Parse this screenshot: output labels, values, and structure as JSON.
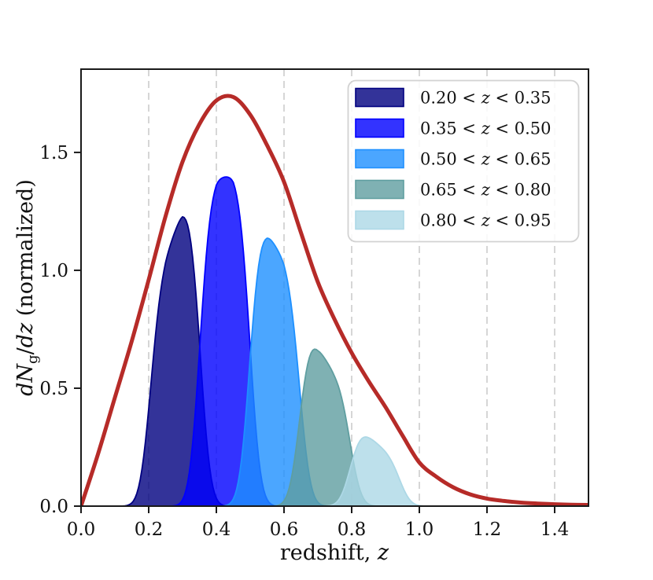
{
  "figure": {
    "background": "#ffffff",
    "frame_color": "#1a1a1a",
    "grid_color": "#c9c9c9",
    "xlabel": "redshift, z",
    "ylabel": "dNg/dz (normalized)",
    "xlabel_segments": [
      {
        "t": "redshift, "
      },
      {
        "t": "z",
        "i": true
      }
    ],
    "ylabel_segments": [
      {
        "t": "dN",
        "i": true
      },
      {
        "t": "g",
        "sub": true
      },
      {
        "t": "/"
      },
      {
        "t": "dz",
        "i": true
      },
      {
        "t": " (normalized)"
      }
    ]
  },
  "chart_data": {
    "type": "line+area",
    "title": "",
    "xlabel": "redshift, z",
    "ylabel": "dN_g/dz (normalized)",
    "xlim": [
      0,
      1.5
    ],
    "ylim": [
      0,
      1.853
    ],
    "x_ticks": {
      "values": [
        0,
        0.2,
        0.4,
        0.6,
        0.8,
        1.0,
        1.2,
        1.4
      ],
      "labels": [
        "0.0",
        "0.2",
        "0.4",
        "0.6",
        "0.8",
        "1.0",
        "1.2",
        "1.4"
      ]
    },
    "y_ticks": {
      "values": [
        0,
        0.5,
        1.0,
        1.5
      ],
      "labels": [
        "0.0",
        "0.5",
        "1.0",
        "1.5"
      ]
    },
    "grid": {
      "axis": "x",
      "style": "dashed",
      "color": "#c9c9c9",
      "positions": [
        0.2,
        0.4,
        0.6,
        0.8,
        1.0,
        1.2,
        1.4
      ]
    },
    "legend": {
      "position": "upper right",
      "entries": [
        "0.20 < z < 0.35",
        "0.35 < z < 0.50",
        "0.50 < z < 0.65",
        "0.65 < z < 0.80",
        "0.80 < z < 0.95"
      ]
    },
    "total_curve": {
      "name": "total dN/dz",
      "color": "#B62B28",
      "linewidth": 5,
      "peak": {
        "z": 0.42,
        "value": 1.75
      },
      "x": [
        0.0,
        0.05,
        0.1,
        0.15,
        0.2,
        0.25,
        0.3,
        0.35,
        0.4,
        0.45,
        0.5,
        0.55,
        0.6,
        0.65,
        0.7,
        0.75,
        0.8,
        0.85,
        0.9,
        0.95,
        1.0,
        1.05,
        1.1,
        1.15,
        1.2,
        1.25,
        1.3,
        1.35,
        1.4,
        1.45,
        1.5
      ],
      "y": [
        0.0,
        0.22,
        0.46,
        0.7,
        0.96,
        1.23,
        1.46,
        1.62,
        1.72,
        1.735,
        1.66,
        1.53,
        1.375,
        1.16,
        0.95,
        0.79,
        0.65,
        0.53,
        0.42,
        0.3,
        0.185,
        0.125,
        0.08,
        0.05,
        0.032,
        0.022,
        0.015,
        0.011,
        0.008,
        0.006,
        0.005
      ]
    },
    "bins": {
      "fill_opacity": 0.8,
      "window_sigma": 0.025,
      "series": [
        {
          "label": "0.20 < z < 0.35",
          "label_segments": [
            {
              "t": "0.20 < "
            },
            {
              "t": "z",
              "i": true
            },
            {
              "t": " < 0.35"
            }
          ],
          "z_min": 0.2,
          "z_max": 0.35,
          "color": "#000080",
          "scale": 0.86,
          "peak_z": 0.29,
          "peak_value": 1.22
        },
        {
          "label": "0.35 < z < 0.50",
          "label_segments": [
            {
              "t": "0.35 < "
            },
            {
              "t": "z",
              "i": true
            },
            {
              "t": " < 0.50"
            }
          ],
          "z_min": 0.35,
          "z_max": 0.5,
          "color": "#0000FF",
          "scale": 0.81,
          "peak_z": 0.425,
          "peak_value": 1.4
        },
        {
          "label": "0.50 < z < 0.65",
          "label_segments": [
            {
              "t": "0.50 < "
            },
            {
              "t": "z",
              "i": true
            },
            {
              "t": " < 0.65"
            }
          ],
          "z_min": 0.5,
          "z_max": 0.65,
          "color": "#1E90FF",
          "scale": 0.76,
          "peak_z": 0.56,
          "peak_value": 1.12
        },
        {
          "label": "0.65 < z < 0.80",
          "label_segments": [
            {
              "t": "0.65 < "
            },
            {
              "t": "z",
              "i": true
            },
            {
              "t": " < 0.80"
            }
          ],
          "z_min": 0.65,
          "z_max": 0.8,
          "color": "#5F9EA0",
          "scale": 0.71,
          "peak_z": 0.7,
          "peak_value": 0.67
        },
        {
          "label": "0.80 < z < 0.95",
          "label_segments": [
            {
              "t": "0.80 < "
            },
            {
              "t": "z",
              "i": true
            },
            {
              "t": " < 0.95"
            }
          ],
          "z_min": 0.8,
          "z_max": 0.95,
          "color": "#ADD8E6",
          "scale": 0.56,
          "peak_z": 0.835,
          "peak_value": 0.31
        }
      ]
    }
  }
}
